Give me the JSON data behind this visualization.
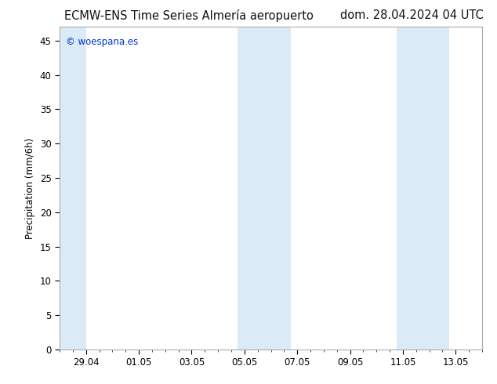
{
  "title_left": "ECMW-ENS Time Series Almería aeropuerto",
  "title_right": "dom. 28.04.2024 04 UTC",
  "ylabel": "Precipitation (mm/6h)",
  "watermark": "© woespana.es",
  "background_color": "#ffffff",
  "plot_bg_color": "#ffffff",
  "band_color": "#daeaf7",
  "ylim": [
    0,
    47
  ],
  "yticks": [
    0,
    5,
    10,
    15,
    20,
    25,
    30,
    35,
    40,
    45
  ],
  "xlim_days": [
    0,
    16
  ],
  "xtick_positions": [
    1,
    3,
    5,
    7,
    9,
    11,
    13,
    15
  ],
  "xtick_labels": [
    "29.04",
    "01.05",
    "03.05",
    "05.05",
    "07.05",
    "09.05",
    "11.05",
    "13.05"
  ],
  "band_positions": [
    [
      0.0,
      1.0
    ],
    [
      6.75,
      7.75
    ],
    [
      7.75,
      8.75
    ],
    [
      12.75,
      13.75
    ],
    [
      13.75,
      14.75
    ]
  ],
  "title_fontsize": 10.5,
  "axis_fontsize": 8.5,
  "watermark_fontsize": 8.5,
  "watermark_color": "#0033cc",
  "spine_color": "#aaaaaa"
}
